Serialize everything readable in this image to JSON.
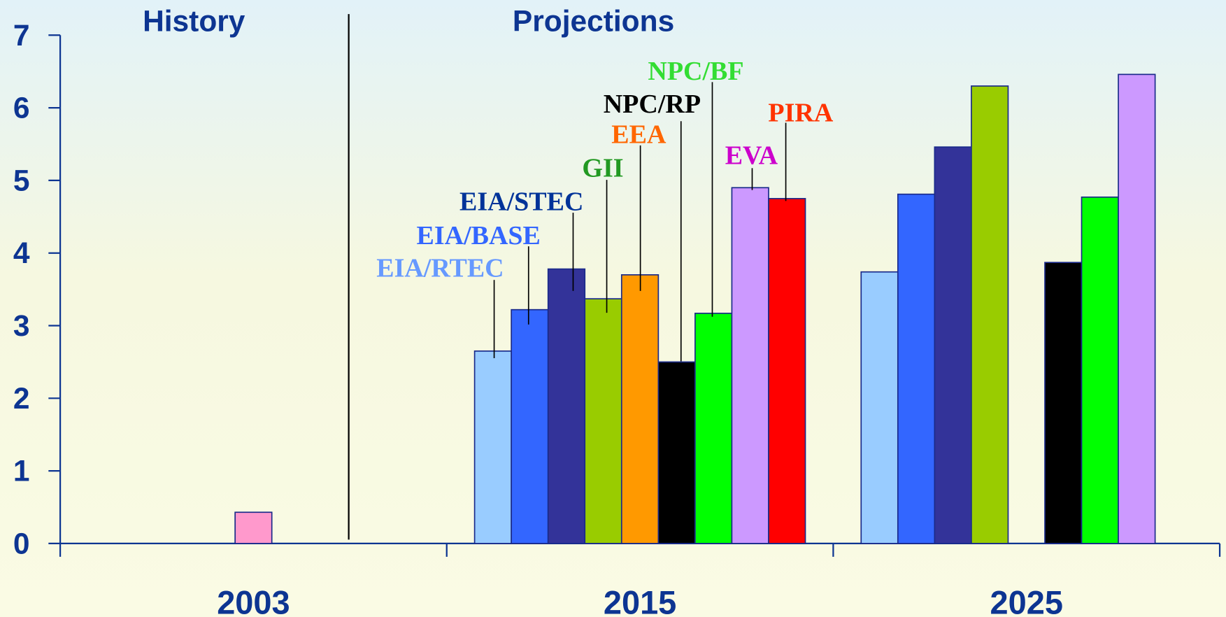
{
  "chart_data": {
    "type": "bar",
    "sections": [
      "History",
      "Projections"
    ],
    "categories": [
      "2003",
      "2015",
      "2025"
    ],
    "history_values": [
      0.43,
      null,
      null
    ],
    "history_color": "#ff99cc",
    "series": [
      {
        "name": "EIA/RTEC",
        "color": "#99ccff",
        "label_color": "#6699ff",
        "values": [
          null,
          2.65,
          3.74
        ]
      },
      {
        "name": "EIA/BASE",
        "color": "#3366ff",
        "label_color": "#3366ff",
        "values": [
          null,
          3.22,
          4.81
        ]
      },
      {
        "name": "EIA/STEC",
        "color": "#333399",
        "label_color": "#003399",
        "values": [
          null,
          3.78,
          5.46
        ]
      },
      {
        "name": "GII",
        "color": "#99cc00",
        "label_color": "#229922",
        "values": [
          null,
          3.37,
          6.3
        ]
      },
      {
        "name": "EEA",
        "color": "#ff9900",
        "label_color": "#ff6600",
        "values": [
          null,
          3.7,
          null
        ]
      },
      {
        "name": "NPC/RP",
        "color": "#000000",
        "label_color": "#000000",
        "values": [
          null,
          2.5,
          3.87
        ]
      },
      {
        "name": "NPC/BF",
        "color": "#00ff00",
        "label_color": "#33dd33",
        "values": [
          null,
          3.17,
          4.77
        ]
      },
      {
        "name": "EVA",
        "color": "#cc99ff",
        "label_color": "#cc00cc",
        "values": [
          null,
          4.9,
          6.46
        ]
      },
      {
        "name": "PIRA",
        "color": "#ff0000",
        "label_color": "#ff3300",
        "values": [
          null,
          4.75,
          null
        ]
      }
    ],
    "ylim": [
      0,
      7
    ],
    "yticks": [
      0,
      1,
      2,
      3,
      4,
      5,
      6,
      7
    ]
  }
}
